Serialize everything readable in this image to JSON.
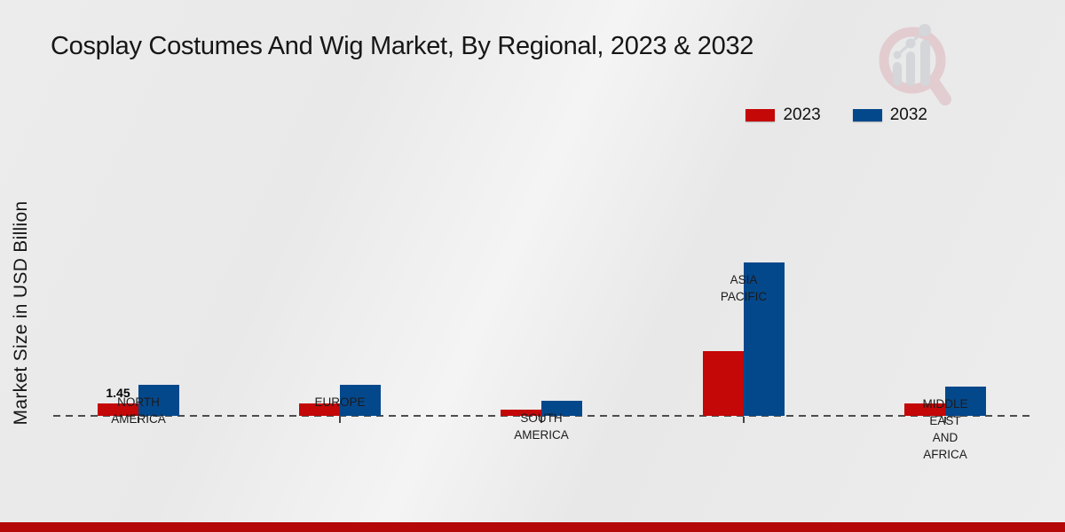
{
  "title": "Cosplay Costumes And Wig Market, By Regional, 2023 & 2032",
  "y_axis_label": "Market Size in USD Billion",
  "watermark_icon": "magnifier-growth-chart-logo",
  "footer": {
    "bar_color": "#b40808"
  },
  "chart_data": {
    "type": "bar",
    "title": "Cosplay Costumes And Wig Market, By Regional, 2023 & 2032",
    "xlabel": "",
    "ylabel": "Market Size in USD Billion",
    "unit": "USD Billion",
    "categories": [
      "NORTH\nAMERICA",
      "EUROPE",
      "SOUTH\nAMERICA",
      "ASIA\nPACIFIC",
      "MIDDLE\nEAST\nAND\nAFRICA"
    ],
    "series": [
      {
        "name": "2023",
        "color": "#c40707",
        "values": [
          1.45,
          1.4,
          0.7,
          7.55,
          1.42
        ]
      },
      {
        "name": "2032",
        "color": "#04488c",
        "values": [
          3.62,
          3.6,
          1.75,
          17.9,
          3.42
        ]
      }
    ],
    "annotations": [
      {
        "text": "1.45",
        "category": "NORTH AMERICA",
        "series": "2023"
      }
    ],
    "ylim": [
      0,
      18
    ],
    "gridlines": false,
    "baseline_style": "dashed",
    "legend_position": "top-right"
  }
}
